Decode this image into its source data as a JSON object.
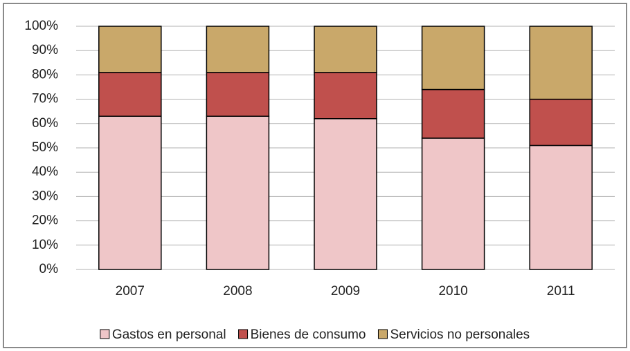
{
  "chart_data": {
    "type": "stacked_bar",
    "categories": [
      "2007",
      "2008",
      "2009",
      "2010",
      "2011"
    ],
    "series": [
      {
        "name": "Gastos en personal",
        "color": "#efc6c8",
        "values": [
          63,
          63,
          62,
          54,
          51
        ]
      },
      {
        "name": "Bienes de consumo",
        "color": "#c0504d",
        "values": [
          18,
          18,
          19,
          20,
          19
        ]
      },
      {
        "name": "Servicios no personales",
        "color": "#c9a86a",
        "values": [
          19,
          19,
          19,
          26,
          30
        ]
      }
    ],
    "ylim": [
      0,
      100
    ],
    "yticks": [
      {
        "value": 0,
        "label": "0%"
      },
      {
        "value": 10,
        "label": "10%"
      },
      {
        "value": 20,
        "label": "20%"
      },
      {
        "value": 30,
        "label": "30%"
      },
      {
        "value": 40,
        "label": "40%"
      },
      {
        "value": 50,
        "label": "50%"
      },
      {
        "value": 60,
        "label": "60%"
      },
      {
        "value": 70,
        "label": "70%"
      },
      {
        "value": 80,
        "label": "80%"
      },
      {
        "value": 90,
        "label": "90%"
      },
      {
        "value": 100,
        "label": "100%"
      }
    ],
    "grid": true,
    "legend": "bottom"
  }
}
